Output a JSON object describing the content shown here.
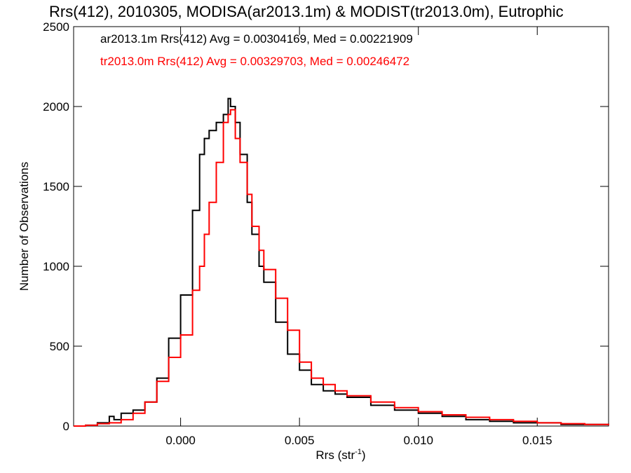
{
  "chart_data": {
    "type": "line",
    "title": "Rrs(412), 2010305, MODISA(ar2013.1m) & MODIST(tr2013.0m), Eutrophic",
    "xlabel": "Rrs (str",
    "xlabel_sup": "-1",
    "xlabel_close": ")",
    "ylabel": "Number of Observations",
    "xlim": [
      -0.0045,
      0.018
    ],
    "ylim": [
      0,
      2500
    ],
    "xticks": [
      0.0,
      0.005,
      0.01,
      0.015
    ],
    "xtick_labels": [
      "0.000",
      "0.005",
      "0.010",
      "0.015"
    ],
    "yticks": [
      0,
      500,
      1000,
      1500,
      2000,
      2500
    ],
    "ytick_labels": [
      "0",
      "500",
      "1000",
      "1500",
      "2000",
      "2500"
    ],
    "grid": false,
    "legend_placement": "top-left",
    "series": [
      {
        "name": "ar2013.1m Rrs(412) Avg = 0.00304169, Med = 0.00221909",
        "color": "#000000",
        "x": [
          -0.0045,
          -0.004,
          -0.0035,
          -0.003,
          -0.0028,
          -0.0025,
          -0.002,
          -0.0015,
          -0.001,
          -0.0005,
          0.0,
          0.0005,
          0.0008,
          0.001,
          0.0012,
          0.0015,
          0.0018,
          0.002,
          0.0021,
          0.0023,
          0.0025,
          0.0028,
          0.003,
          0.0033,
          0.0035,
          0.004,
          0.0045,
          0.005,
          0.0055,
          0.006,
          0.0065,
          0.007,
          0.008,
          0.009,
          0.01,
          0.011,
          0.012,
          0.013,
          0.014,
          0.015,
          0.016,
          0.017,
          0.018
        ],
        "y": [
          0,
          5,
          20,
          60,
          40,
          80,
          100,
          150,
          300,
          550,
          820,
          1350,
          1700,
          1800,
          1850,
          1900,
          1950,
          2050,
          2000,
          1900,
          1700,
          1400,
          1200,
          1000,
          900,
          650,
          450,
          350,
          260,
          220,
          200,
          180,
          130,
          100,
          80,
          60,
          40,
          30,
          20,
          20,
          10,
          10,
          5
        ]
      },
      {
        "name": "tr2013.0m Rrs(412) Avg = 0.00329703, Med = 0.00246472",
        "color": "#ff0000",
        "x": [
          -0.0045,
          -0.004,
          -0.0035,
          -0.003,
          -0.0025,
          -0.002,
          -0.0015,
          -0.001,
          -0.0005,
          0.0,
          0.0005,
          0.0008,
          0.001,
          0.0012,
          0.0015,
          0.0018,
          0.002,
          0.0021,
          0.0023,
          0.0025,
          0.0028,
          0.003,
          0.0033,
          0.0035,
          0.004,
          0.0045,
          0.005,
          0.0055,
          0.006,
          0.0065,
          0.007,
          0.008,
          0.009,
          0.01,
          0.011,
          0.012,
          0.013,
          0.014,
          0.015,
          0.016,
          0.017,
          0.018
        ],
        "y": [
          0,
          5,
          15,
          20,
          40,
          80,
          150,
          280,
          430,
          570,
          850,
          1000,
          1200,
          1400,
          1650,
          1900,
          1950,
          1980,
          1800,
          1650,
          1450,
          1250,
          1100,
          980,
          800,
          600,
          400,
          300,
          260,
          220,
          190,
          150,
          115,
          90,
          70,
          55,
          40,
          30,
          20,
          15,
          10,
          5
        ]
      }
    ]
  }
}
